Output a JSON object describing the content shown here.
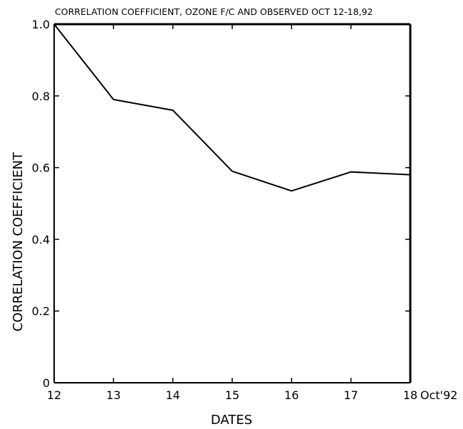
{
  "chart_data": {
    "type": "line",
    "title": "CORRELATION COEFFICIENT, OZONE F/C AND OBSERVED OCT 12-18,92",
    "xlabel": "DATES",
    "ylabel": "CORRELATION COEFFICIENT",
    "x_suffix": "Oct'92",
    "categories": [
      "12",
      "13",
      "14",
      "15",
      "16",
      "17",
      "18"
    ],
    "x": [
      12,
      13,
      14,
      15,
      16,
      17,
      18
    ],
    "series": [
      {
        "values": [
          1.0,
          0.79,
          0.76,
          0.59,
          0.535,
          0.588,
          0.58
        ]
      }
    ],
    "xlim": [
      12,
      18
    ],
    "ylim": [
      0,
      1.0
    ],
    "yticks": [
      0,
      0.2,
      0.4,
      0.6,
      0.8,
      1.0
    ],
    "ytick_labels": [
      "0",
      "0.2",
      "0.4",
      "0.6",
      "0.8",
      "1.0"
    ],
    "grid": false,
    "line_color": "#000000"
  }
}
